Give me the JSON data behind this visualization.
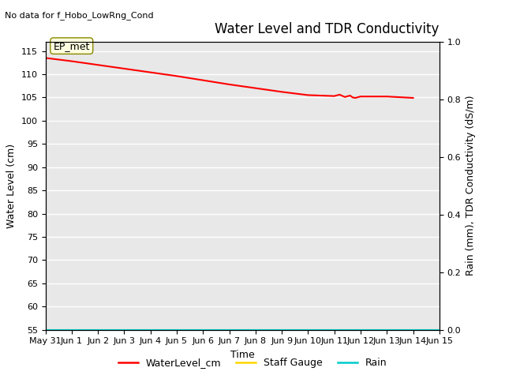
{
  "title": "Water Level and TDR Conductivity",
  "suptitle": "No data for f_Hobo_LowRng_Cond",
  "xlabel": "Time",
  "ylabel_left": "Water Level (cm)",
  "ylabel_right": "Rain (mm), TDR Conductivity (dS/m)",
  "ylim_left": [
    55,
    117
  ],
  "ylim_right": [
    0.0,
    1.0
  ],
  "yticks_left": [
    55,
    60,
    65,
    70,
    75,
    80,
    85,
    90,
    95,
    100,
    105,
    110,
    115
  ],
  "yticks_right": [
    0.0,
    0.2,
    0.4,
    0.6,
    0.8,
    1.0
  ],
  "xlim": [
    0,
    15
  ],
  "xtick_positions": [
    0,
    1,
    2,
    3,
    4,
    5,
    6,
    7,
    8,
    9,
    10,
    11,
    12,
    13,
    14,
    15
  ],
  "xtick_labels": [
    "May 31",
    "Jun 1",
    "Jun 2",
    "Jun 3",
    "Jun 4",
    "Jun 5",
    "Jun 6",
    "Jun 7",
    "Jun 8",
    "Jun 9",
    "Jun 10",
    "Jun 11",
    "Jun 12",
    "Jun 13",
    "Jun 14",
    "Jun 15"
  ],
  "water_level_x": [
    0,
    1,
    2,
    3,
    4,
    5,
    6,
    7,
    8,
    9,
    10,
    11,
    11.2,
    11.4,
    11.6,
    11.7,
    11.8,
    12,
    13,
    14
  ],
  "water_level_y": [
    113.5,
    112.8,
    112.0,
    111.2,
    110.4,
    109.6,
    108.7,
    107.8,
    107.0,
    106.2,
    105.5,
    105.3,
    105.6,
    105.1,
    105.4,
    105.0,
    104.9,
    105.2,
    105.2,
    104.9
  ],
  "water_level_color": "#FF0000",
  "staff_gauge_color": "#FFD700",
  "rain_color": "#00CCCC",
  "legend_labels": [
    "WaterLevel_cm",
    "Staff Gauge",
    "Rain"
  ],
  "annotation_text": "EP_met",
  "bg_color": "#E8E8E8",
  "grid_color": "#FFFFFF",
  "title_fontsize": 12,
  "axis_fontsize": 9,
  "tick_fontsize": 8,
  "legend_fontsize": 9,
  "suptitle_fontsize": 8
}
